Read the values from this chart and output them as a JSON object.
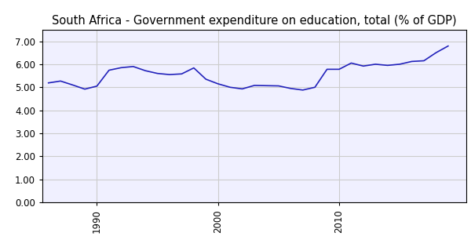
{
  "title": "South Africa - Government expenditure on education, total (% of GDP)",
  "years": [
    1986,
    1987,
    1988,
    1989,
    1990,
    1991,
    1992,
    1993,
    1994,
    1995,
    1996,
    1997,
    1998,
    1999,
    2000,
    2001,
    2002,
    2003,
    2004,
    2005,
    2006,
    2007,
    2008,
    2009,
    2010,
    2011,
    2012,
    2013,
    2014,
    2015,
    2016,
    2017,
    2018,
    2019
  ],
  "values": [
    5.19,
    5.27,
    5.1,
    4.92,
    5.05,
    5.74,
    5.85,
    5.9,
    5.72,
    5.6,
    5.55,
    5.58,
    5.84,
    5.35,
    5.15,
    5.0,
    4.93,
    5.08,
    5.07,
    5.06,
    4.95,
    4.88,
    5.0,
    5.78,
    5.78,
    6.05,
    5.92,
    6.0,
    5.95,
    6.0,
    6.12,
    6.15,
    6.5,
    6.79
  ],
  "line_color": "#2222bb",
  "line_width": 1.2,
  "xlim": [
    1985.5,
    2020.5
  ],
  "ylim": [
    0,
    7.5
  ],
  "yticks": [
    0.0,
    1.0,
    2.0,
    3.0,
    4.0,
    5.0,
    6.0,
    7.0
  ],
  "ytick_labels": [
    "0.00",
    "1.00",
    "2.00",
    "3.00",
    "4.00",
    "5.00",
    "6.00",
    "7.00"
  ],
  "xticks": [
    1990,
    2000,
    2010
  ],
  "background_color": "#ffffff",
  "plot_bg_color": "#f0f0ff",
  "grid_color": "#cccccc",
  "spine_color": "#000000",
  "title_fontsize": 10.5,
  "tick_fontsize": 8.5
}
